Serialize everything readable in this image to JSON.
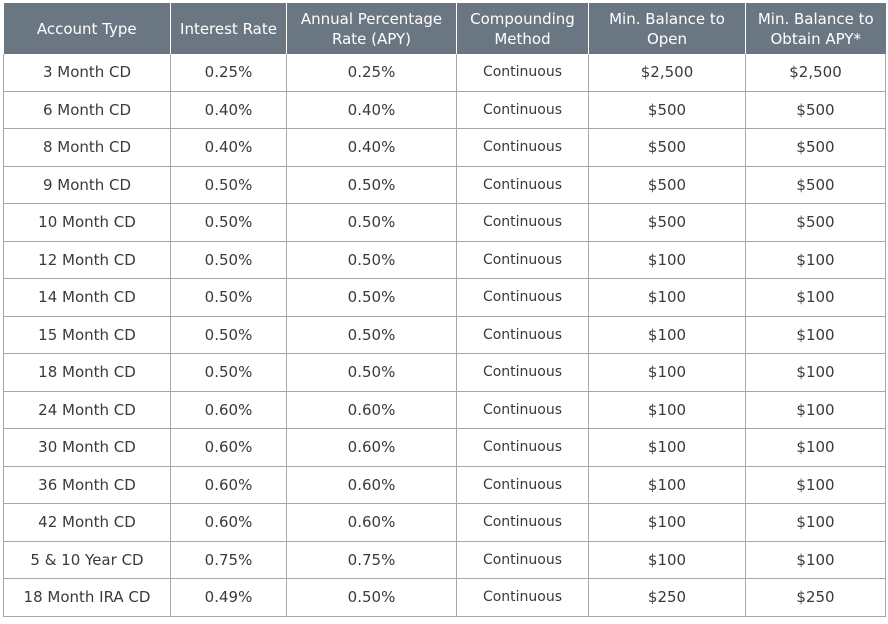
{
  "table": {
    "headers": [
      [
        "Account Type"
      ],
      [
        "Interest Rate"
      ],
      [
        "Annual Percentage",
        "Rate (APY)"
      ],
      [
        "Compounding",
        "Method"
      ],
      [
        "Min. Balance to",
        "Open"
      ],
      [
        "Min. Balance to",
        "Obtain APY*"
      ]
    ],
    "rows": [
      [
        "3 Month CD",
        "0.25%",
        "0.25%",
        "Continuous",
        "$2,500",
        "$2,500"
      ],
      [
        "6 Month CD",
        "0.40%",
        "0.40%",
        "Continuous",
        "$500",
        "$500"
      ],
      [
        "8 Month CD",
        "0.40%",
        "0.40%",
        "Continuous",
        "$500",
        "$500"
      ],
      [
        "9 Month CD",
        "0.50%",
        "0.50%",
        "Continuous",
        "$500",
        "$500"
      ],
      [
        "10 Month CD",
        "0.50%",
        "0.50%",
        "Continuous",
        "$500",
        "$500"
      ],
      [
        "12 Month CD",
        "0.50%",
        "0.50%",
        "Continuous",
        "$100",
        "$100"
      ],
      [
        "14 Month CD",
        "0.50%",
        "0.50%",
        "Continuous",
        "$100",
        "$100"
      ],
      [
        "15 Month CD",
        "0.50%",
        "0.50%",
        "Continuous",
        "$100",
        "$100"
      ],
      [
        "18 Month CD",
        "0.50%",
        "0.50%",
        "Continuous",
        "$100",
        "$100"
      ],
      [
        "24 Month CD",
        "0.60%",
        "0.60%",
        "Continuous",
        "$100",
        "$100"
      ],
      [
        "30 Month CD",
        "0.60%",
        "0.60%",
        "Continuous",
        "$100",
        "$100"
      ],
      [
        "36 Month CD",
        "0.60%",
        "0.60%",
        "Continuous",
        "$100",
        "$100"
      ],
      [
        "42 Month CD",
        "0.60%",
        "0.60%",
        "Continuous",
        "$100",
        "$100"
      ],
      [
        "5 & 10 Year CD",
        "0.75%",
        "0.75%",
        "Continuous",
        "$100",
        "$100"
      ],
      [
        "18 Month IRA CD",
        "0.49%",
        "0.50%",
        "Continuous",
        "$250",
        "$250"
      ]
    ]
  },
  "colors": {
    "header_bg": "#6b7683",
    "header_text": "#ffffff",
    "border": "#a7a7a7",
    "cell_text": "#3a3a3a"
  }
}
